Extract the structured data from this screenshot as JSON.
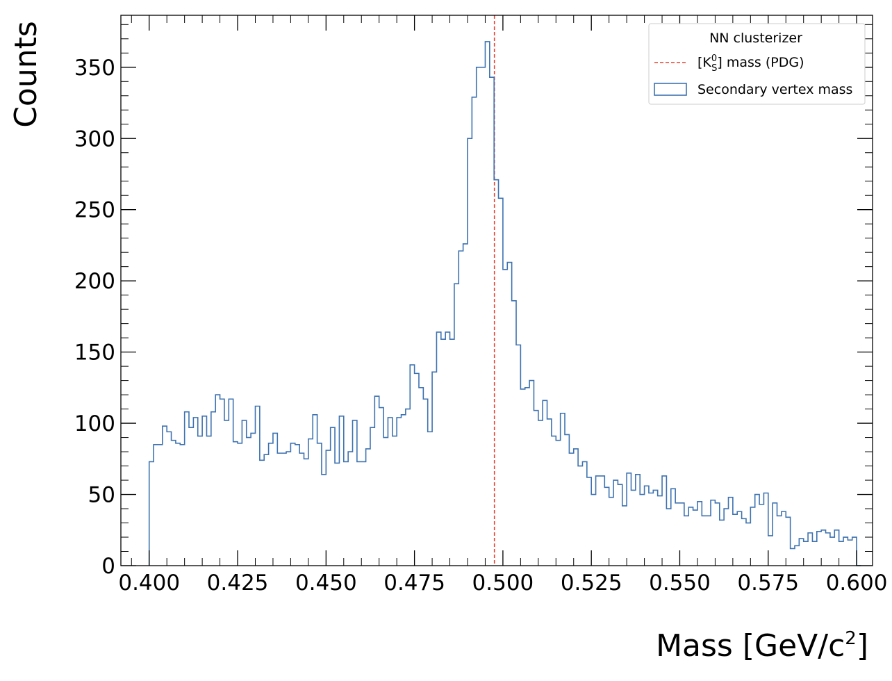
{
  "chart_data": {
    "type": "histogram",
    "xlabel": "Mass [GeV/c",
    "xlabel_sup": "2",
    "xlabel_close": "]",
    "ylabel": "Counts",
    "xlim": [
      0.392,
      0.6045
    ],
    "ylim": [
      0,
      386.5
    ],
    "x_ticks": [
      "0.400",
      "0.425",
      "0.450",
      "0.475",
      "0.500",
      "0.525",
      "0.550",
      "0.575",
      "0.600"
    ],
    "x_tick_values": [
      0.4,
      0.425,
      0.45,
      0.475,
      0.5,
      0.525,
      0.55,
      0.575,
      0.6
    ],
    "y_ticks": [
      "0",
      "50",
      "100",
      "150",
      "200",
      "250",
      "300",
      "350"
    ],
    "y_tick_values": [
      0,
      50,
      100,
      150,
      200,
      250,
      300,
      350
    ],
    "legend": {
      "title": "NN clusterizer",
      "placement": "top-right",
      "entries": [
        {
          "label_prefix": "[K",
          "label_sup": "0",
          "label_sub": "S",
          "label_suffix": "] mass (PDG)",
          "style": "dashed-line",
          "color": "#e8412f"
        },
        {
          "label": "Secondary vertex mass",
          "style": "box",
          "color": "#3d72b0"
        }
      ]
    },
    "reference_line": {
      "x": 0.4976,
      "color": "#e8412f",
      "style": "dashed"
    },
    "series": [
      {
        "color": "#3d72b0",
        "bin_width": 0.00125,
        "x_start": 0.4,
        "values": [
          73,
          85,
          85,
          98,
          94,
          88,
          86,
          85,
          108,
          97,
          104,
          91,
          105,
          91,
          108,
          120,
          117,
          102,
          117,
          87,
          86,
          102,
          90,
          93,
          112,
          74,
          78,
          86,
          93,
          79,
          79,
          80,
          86,
          85,
          79,
          75,
          89,
          106,
          86,
          64,
          81,
          97,
          72,
          105,
          73,
          80,
          102,
          73,
          73,
          82,
          97,
          119,
          111,
          90,
          104,
          91,
          104,
          106,
          110,
          141,
          135,
          125,
          117,
          94,
          136,
          164,
          159,
          164,
          159,
          198,
          221,
          226,
          300,
          329,
          350,
          350,
          368,
          343,
          271,
          258,
          208,
          213,
          186,
          155,
          124,
          125,
          130,
          109,
          102,
          116,
          103,
          91,
          88,
          107,
          92,
          79,
          82,
          70,
          73,
          62,
          50,
          63,
          63,
          55,
          48,
          60,
          57,
          42,
          65,
          53,
          64,
          50,
          56,
          51,
          53,
          49,
          63,
          40,
          54,
          44,
          44,
          35,
          41,
          39,
          45,
          35,
          35,
          46,
          44,
          32,
          40,
          48,
          36,
          38,
          33,
          30,
          41,
          50,
          43,
          51,
          21,
          44,
          35,
          38,
          34,
          12,
          14,
          19,
          17,
          23,
          17,
          24,
          25,
          23,
          20,
          25,
          17,
          20,
          18,
          20,
          0
        ]
      }
    ]
  }
}
